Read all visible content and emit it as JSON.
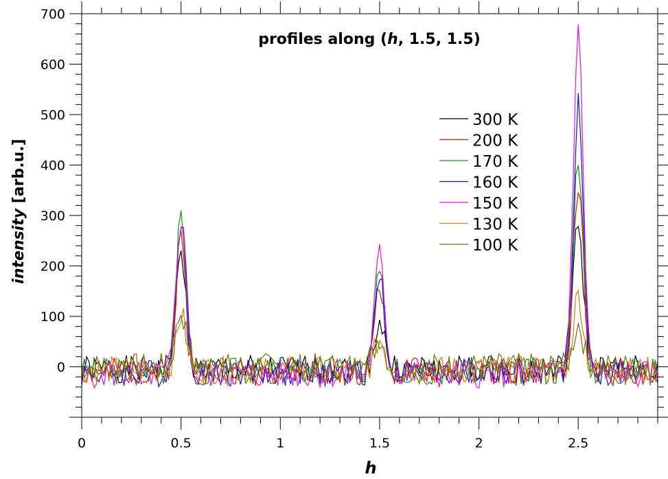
{
  "chart_data": {
    "type": "line",
    "title_prefix": "profiles along (",
    "title_var": "h",
    "title_suffix": ", 1.5, 1.5)",
    "xlabel": "h",
    "ylabel_italic": "intensity",
    "ylabel_rest": " [arb.u.]",
    "xlim": [
      0,
      2.9
    ],
    "ylim": [
      -100,
      700
    ],
    "x_ticks": [
      0,
      0.5,
      1,
      1.5,
      2,
      2.5
    ],
    "x_tick_labels": [
      "0",
      "0.5",
      "1",
      "1.5",
      "2",
      "2.5"
    ],
    "y_ticks": [
      0,
      100,
      200,
      300,
      400,
      500,
      600,
      700
    ],
    "y_tick_labels": [
      "0",
      "100",
      "200",
      "300",
      "400",
      "500",
      "600",
      "700"
    ],
    "legend_position": "upper-right",
    "peak_centers": [
      0.5,
      1.5,
      2.5
    ],
    "series": [
      {
        "name": "300 K",
        "color": "#000000",
        "peaks": [
          225,
          95,
          290
        ],
        "baseline": -5,
        "seed": 1
      },
      {
        "name": "200 K",
        "color": "#e01010",
        "peaks": [
          265,
          180,
          370
        ],
        "baseline": -10,
        "seed": 2
      },
      {
        "name": "170 K",
        "color": "#109010",
        "peaks": [
          295,
          185,
          430
        ],
        "baseline": -8,
        "seed": 3
      },
      {
        "name": "160 K",
        "color": "#1010e0",
        "peaks": [
          315,
          195,
          530
        ],
        "baseline": -12,
        "seed": 4
      },
      {
        "name": "150 K",
        "color": "#e010e0",
        "peaks": [
          310,
          237,
          677
        ],
        "baseline": -15,
        "seed": 5
      },
      {
        "name": "130 K",
        "color": "#e07a10",
        "peaks": [
          110,
          60,
          148
        ],
        "baseline": -6,
        "seed": 6
      },
      {
        "name": "100 K",
        "color": "#707010",
        "peaks": [
          110,
          60,
          85
        ],
        "baseline": 0,
        "seed": 7
      }
    ]
  }
}
